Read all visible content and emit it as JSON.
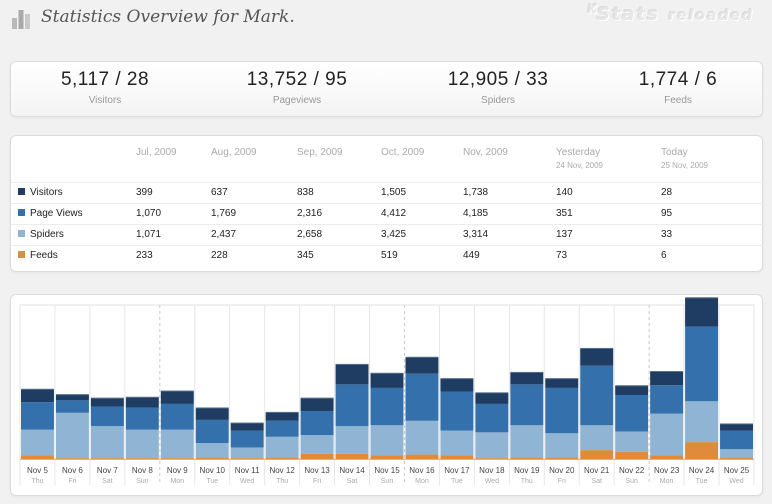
{
  "header": {
    "title": "Statistics Overview for Mark.",
    "brand_prefix": "K",
    "brand_name": "Stats",
    "brand_suffix": "reloaded"
  },
  "summary": [
    {
      "value": "5,117 / 28",
      "label": "Visitors"
    },
    {
      "value": "13,752 / 95",
      "label": "Pageviews"
    },
    {
      "value": "12,905 / 33",
      "label": "Spiders"
    },
    {
      "value": "1,774 / 6",
      "label": "Feeds"
    }
  ],
  "table": {
    "columns": [
      {
        "label": "Jul, 2009",
        "sub": ""
      },
      {
        "label": "Aug, 2009",
        "sub": ""
      },
      {
        "label": "Sep, 2009",
        "sub": ""
      },
      {
        "label": "Oct, 2009",
        "sub": ""
      },
      {
        "label": "Nov, 2009",
        "sub": ""
      },
      {
        "label": "Yesterday",
        "sub": "24 Nov, 2009"
      },
      {
        "label": "Today",
        "sub": "25 Nov, 2009"
      }
    ],
    "rows": [
      {
        "label": "Visitors",
        "color": "#1f3d63",
        "values": [
          "399",
          "637",
          "838",
          "1,505",
          "1,738",
          "140",
          "28"
        ]
      },
      {
        "label": "Page Views",
        "color": "#3470ab",
        "values": [
          "1,070",
          "1,769",
          "2,316",
          "4,412",
          "4,185",
          "351",
          "95"
        ]
      },
      {
        "label": "Spiders",
        "color": "#8fb4d4",
        "values": [
          "1,071",
          "2,437",
          "2,658",
          "3,425",
          "3,314",
          "137",
          "33"
        ]
      },
      {
        "label": "Feeds",
        "color": "#e08a3c",
        "values": [
          "233",
          "228",
          "345",
          "519",
          "449",
          "73",
          "6"
        ]
      }
    ]
  },
  "chart_data": {
    "type": "bar",
    "stacked": true,
    "categories": [
      "Nov 5",
      "Nov 6",
      "Nov 7",
      "Nov 8",
      "Nov 9",
      "Nov 10",
      "Nov 11",
      "Nov 12",
      "Nov 13",
      "Nov 14",
      "Nov 15",
      "Nov 16",
      "Nov 17",
      "Nov 18",
      "Nov 19",
      "Nov 20",
      "Nov 21",
      "Nov 22",
      "Nov 23",
      "Nov 24",
      "Nov 25"
    ],
    "weekdays": [
      "Thu",
      "Fri",
      "Sat",
      "Sun",
      "Mon",
      "Tue",
      "Wed",
      "Thu",
      "Fri",
      "Sat",
      "Sun",
      "Mon",
      "Tue",
      "Wed",
      "Thu",
      "Fri",
      "Sat",
      "Sun",
      "Mon",
      "Tue",
      "Wed"
    ],
    "week_separators_before": [
      4,
      11,
      18
    ],
    "ylim": [
      0,
      520
    ],
    "series": [
      {
        "name": "Feeds",
        "color": "#e08a3c",
        "values": [
          12,
          3,
          3,
          3,
          3,
          6,
          3,
          6,
          18,
          18,
          12,
          15,
          12,
          3,
          6,
          6,
          30,
          24,
          12,
          57,
          6
        ]
      },
      {
        "name": "Spiders",
        "color": "#8fb4d4",
        "values": [
          87,
          153,
          108,
          96,
          96,
          48,
          36,
          69,
          63,
          93,
          102,
          114,
          84,
          87,
          108,
          81,
          84,
          69,
          141,
          138,
          27
        ]
      },
      {
        "name": "Page Views",
        "color": "#3470ab",
        "values": [
          93,
          42,
          66,
          75,
          87,
          78,
          57,
          54,
          81,
          141,
          126,
          159,
          132,
          96,
          138,
          153,
          201,
          123,
          96,
          252,
          63
        ]
      },
      {
        "name": "Visitors",
        "color": "#1f3d63",
        "values": [
          45,
          21,
          30,
          36,
          45,
          42,
          27,
          30,
          45,
          69,
          51,
          57,
          45,
          39,
          42,
          33,
          60,
          33,
          48,
          99,
          24
        ]
      }
    ]
  }
}
